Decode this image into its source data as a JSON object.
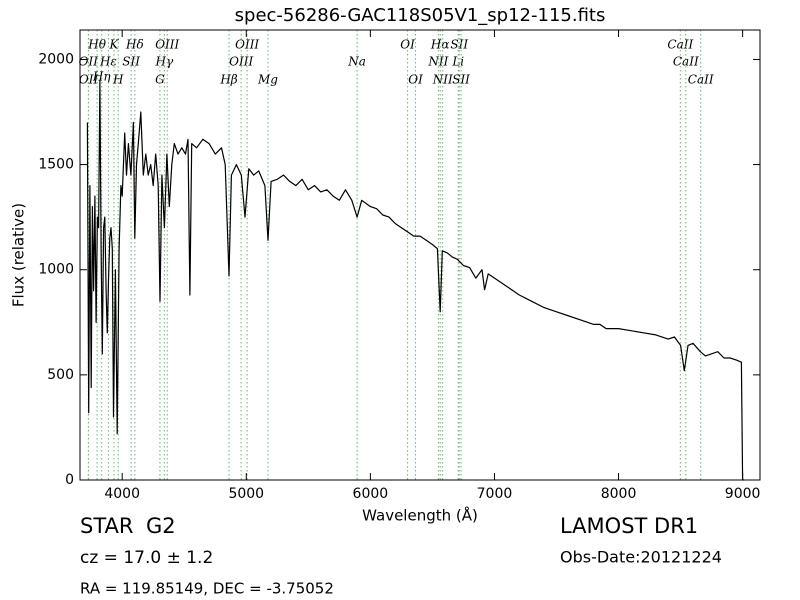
{
  "chart_data": {
    "type": "line",
    "title": "spec-56286-GAC118S05V1_sp12-115.fits",
    "x_label": "Wavelength (Å)",
    "y_label": "Flux (relative)",
    "xlim": [
      3660,
      9140
    ],
    "ylim": [
      0,
      2140
    ],
    "xticks": [
      4000,
      5000,
      6000,
      7000,
      8000,
      9000
    ],
    "yticks": [
      0,
      500,
      1000,
      1500,
      2000
    ],
    "color": "#000000",
    "x": [
      3720,
      3730,
      3740,
      3750,
      3760,
      3770,
      3780,
      3790,
      3800,
      3810,
      3820,
      3830,
      3840,
      3850,
      3860,
      3870,
      3880,
      3890,
      3900,
      3910,
      3920,
      3930,
      3945,
      3960,
      3975,
      3990,
      4000,
      4020,
      4035,
      4050,
      4070,
      4090,
      4102,
      4115,
      4130,
      4150,
      4170,
      4190,
      4210,
      4230,
      4250,
      4270,
      4290,
      4305,
      4320,
      4340,
      4360,
      4380,
      4400,
      4420,
      4450,
      4480,
      4510,
      4530,
      4546,
      4560,
      4600,
      4650,
      4700,
      4750,
      4800,
      4830,
      4861,
      4880,
      4920,
      4960,
      4990,
      5020,
      5060,
      5100,
      5150,
      5175,
      5200,
      5250,
      5300,
      5350,
      5400,
      5450,
      5500,
      5550,
      5600,
      5650,
      5700,
      5750,
      5800,
      5850,
      5893,
      5930,
      6000,
      6050,
      6100,
      6150,
      6200,
      6250,
      6300,
      6350,
      6400,
      6450,
      6500,
      6540,
      6563,
      6580,
      6620,
      6660,
      6700,
      6750,
      6800,
      6850,
      6900,
      6921,
      6950,
      7000,
      7100,
      7200,
      7300,
      7400,
      7500,
      7600,
      7700,
      7800,
      7850,
      7900,
      8000,
      8100,
      8200,
      8300,
      8400,
      8450,
      8500,
      8530,
      8560,
      8600,
      8660,
      8700,
      8750,
      8800,
      8850,
      8900,
      8950,
      8990,
      9000,
      9010
    ],
    "values": [
      1700,
      320,
      1400,
      440,
      1300,
      900,
      1350,
      750,
      1250,
      1200,
      1900,
      1100,
      600,
      1200,
      1250,
      900,
      700,
      950,
      1150,
      1200,
      1100,
      300,
      1000,
      220,
      1100,
      1400,
      1350,
      1650,
      1450,
      1600,
      1450,
      1700,
      1150,
      1500,
      1600,
      1750,
      1450,
      1550,
      1450,
      1500,
      1400,
      1550,
      1400,
      850,
      1450,
      1200,
      1550,
      1300,
      1500,
      1600,
      1550,
      1580,
      1550,
      1620,
      880,
      1600,
      1580,
      1620,
      1600,
      1550,
      1580,
      1500,
      970,
      1450,
      1500,
      1450,
      1250,
      1480,
      1450,
      1470,
      1400,
      1140,
      1420,
      1430,
      1450,
      1420,
      1400,
      1430,
      1380,
      1400,
      1370,
      1380,
      1350,
      1330,
      1380,
      1330,
      1250,
      1330,
      1300,
      1290,
      1260,
      1250,
      1220,
      1200,
      1180,
      1160,
      1160,
      1140,
      1120,
      1100,
      800,
      1090,
      1080,
      1060,
      1050,
      1020,
      1010,
      960,
      1000,
      905,
      980,
      960,
      920,
      880,
      850,
      820,
      800,
      780,
      760,
      740,
      740,
      720,
      720,
      710,
      700,
      690,
      670,
      680,
      640,
      520,
      640,
      650,
      610,
      590,
      600,
      610,
      580,
      580,
      570,
      560,
      0,
      0
    ],
    "line_color": "#66bb66",
    "lines": [
      {
        "wavelength": 3727,
        "label": "OII"
      },
      {
        "wavelength": 3729,
        "label": "OII"
      },
      {
        "wavelength": 3798,
        "label": "Hθ"
      },
      {
        "wavelength": 3835,
        "label": "Hη"
      },
      {
        "wavelength": 3889,
        "label": "Hε"
      },
      {
        "wavelength": 3934,
        "label": "K"
      },
      {
        "wavelength": 3968,
        "label": "H"
      },
      {
        "wavelength": 4072,
        "label": "SII"
      },
      {
        "wavelength": 4102,
        "label": "Hδ"
      },
      {
        "wavelength": 4304,
        "label": "G"
      },
      {
        "wavelength": 4340,
        "label": "Hγ"
      },
      {
        "wavelength": 4363,
        "label": "OIII"
      },
      {
        "wavelength": 4861,
        "label": "Hβ"
      },
      {
        "wavelength": 4959,
        "label": "OIII"
      },
      {
        "wavelength": 5007,
        "label": "OIII"
      },
      {
        "wavelength": 5175,
        "label": "Mg"
      },
      {
        "wavelength": 5893,
        "label": "Na"
      },
      {
        "wavelength": 6300,
        "label": "OI"
      },
      {
        "wavelength": 6364,
        "label": "OI"
      },
      {
        "wavelength": 6548,
        "label": "NII"
      },
      {
        "wavelength": 6563,
        "label": "Hα"
      },
      {
        "wavelength": 6583,
        "label": "NII"
      },
      {
        "wavelength": 6708,
        "label": "Li"
      },
      {
        "wavelength": 6716,
        "label": "SII"
      },
      {
        "wavelength": 6731,
        "label": "SII"
      },
      {
        "wavelength": 8498,
        "label": "CaII"
      },
      {
        "wavelength": 8542,
        "label": "CaII"
      },
      {
        "wavelength": 8662,
        "label": "CaII"
      }
    ],
    "info": {
      "class": "STAR",
      "subclass": "G2",
      "cz": "cz = 17.0  ± 1.2",
      "coords": "RA = 119.85149, DEC = -3.75052",
      "survey": "LAMOST DR1",
      "date": "Obs-Date:20121224"
    }
  }
}
